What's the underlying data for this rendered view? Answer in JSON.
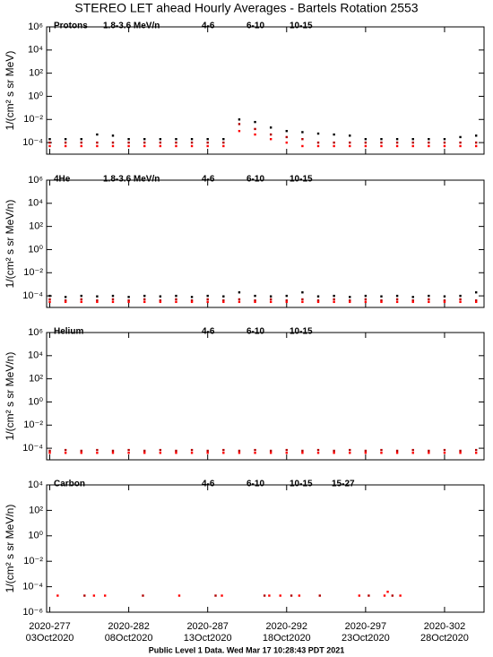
{
  "page": {
    "title": "STEREO LET ahead Hourly Averages - Bartels Rotation 2553",
    "footer": "Public Level 1 Data. Wed Mar 17 10:28:43 PDT 2021"
  },
  "chart_data": [
    {
      "type": "scatter",
      "label": "Protons",
      "y_label": "1/(cm² s sr MeV)",
      "log_y": true,
      "xlim": [
        276.8,
        304.5
      ],
      "ylim": [
        1e-05,
        1000000
      ],
      "yticks": [
        {
          "value": 0.0001,
          "label": "10⁻⁴"
        },
        {
          "value": 0.01,
          "label": "10⁻²"
        },
        {
          "value": 1,
          "label": "10⁰"
        },
        {
          "value": 100,
          "label": "10²"
        },
        {
          "value": 10000,
          "label": "10⁴"
        },
        {
          "value": 1000000,
          "label": "10⁶"
        }
      ],
      "x": [
        277,
        278,
        279,
        280,
        281,
        282,
        283,
        284,
        285,
        286,
        287,
        288,
        289,
        290,
        291,
        292,
        293,
        294,
        295,
        296,
        297,
        298,
        299,
        300,
        301,
        302,
        303,
        304
      ],
      "series": [
        {
          "name": "1.8-3.6 MeV/n",
          "color": "#000000",
          "values": [
            0.0002,
            0.0002,
            0.0002,
            0.0005,
            0.0004,
            0.0002,
            0.0002,
            0.0002,
            0.0002,
            0.0002,
            0.0002,
            0.0002,
            0.01,
            0.006,
            0.002,
            0.001,
            0.0008,
            0.0006,
            0.0005,
            0.0004,
            0.0002,
            0.0002,
            0.0002,
            0.0002,
            0.0002,
            0.0002,
            0.0003,
            0.0004
          ]
        },
        {
          "name": "4-6",
          "color": "#b00000",
          "values": [
            0.0001,
            0.0001,
            0.0001,
            0.0001,
            0.0001,
            0.0001,
            0.0001,
            0.0001,
            0.0001,
            0.0001,
            0.0001,
            0.0001,
            0.004,
            0.0015,
            0.0005,
            0.0003,
            0.0002,
            0.0001,
            0.0001,
            0.0001,
            0.0001,
            0.0001,
            0.0001,
            0.0001,
            0.0001,
            0.0001,
            0.0001,
            0.0001
          ]
        },
        {
          "name": "6-10",
          "color": "#ff0000",
          "values": [
            5e-05,
            5e-05,
            5e-05,
            5e-05,
            5e-05,
            5e-05,
            5e-05,
            5e-05,
            5e-05,
            5e-05,
            5e-05,
            5e-05,
            0.001,
            0.0005,
            0.0002,
            0.0001,
            5e-05,
            5e-05,
            5e-05,
            5e-05,
            5e-05,
            5e-05,
            5e-05,
            5e-05,
            5e-05,
            5e-05,
            5e-05,
            5e-05
          ]
        },
        {
          "name": "10-15",
          "color": "#888888",
          "values": [
            null,
            null,
            null,
            null,
            null,
            null,
            null,
            null,
            null,
            null,
            null,
            null,
            null,
            null,
            null,
            null,
            null,
            null,
            null,
            null,
            null,
            null,
            null,
            null,
            null,
            null,
            null,
            null
          ]
        }
      ]
    },
    {
      "type": "scatter",
      "label": "4He",
      "y_label": "1/(cm² s sr MeV/n)",
      "log_y": true,
      "xlim": [
        276.8,
        304.5
      ],
      "ylim": [
        1e-05,
        1000000
      ],
      "yticks": [
        {
          "value": 0.0001,
          "label": "10⁻⁴"
        },
        {
          "value": 0.01,
          "label": "10⁻²"
        },
        {
          "value": 1,
          "label": "10⁰"
        },
        {
          "value": 100,
          "label": "10²"
        },
        {
          "value": 10000,
          "label": "10⁴"
        },
        {
          "value": 1000000,
          "label": "10⁶"
        }
      ],
      "x": [
        277,
        278,
        279,
        280,
        281,
        282,
        283,
        284,
        285,
        286,
        287,
        288,
        289,
        290,
        291,
        292,
        293,
        294,
        295,
        296,
        297,
        298,
        299,
        300,
        301,
        302,
        303,
        304
      ],
      "series": [
        {
          "name": "1.8-3.6 MeV/n",
          "color": "#000000",
          "values": [
            0.0001,
            8e-05,
            0.0001,
            9e-05,
            0.0001,
            8e-05,
            0.0001,
            9e-05,
            0.0001,
            8e-05,
            0.0001,
            9e-05,
            0.0002,
            0.0001,
            9e-05,
            0.0001,
            0.0002,
            9e-05,
            0.0001,
            8e-05,
            0.0001,
            9e-05,
            0.0001,
            8e-05,
            0.0001,
            9e-05,
            0.0001,
            0.0002
          ]
        },
        {
          "name": "4-6",
          "color": "#b00000",
          "values": [
            5e-05,
            4e-05,
            5e-05,
            4e-05,
            5e-05,
            4e-05,
            5e-05,
            4e-05,
            5e-05,
            4e-05,
            5e-05,
            4e-05,
            5e-05,
            4e-05,
            5e-05,
            4e-05,
            5e-05,
            4e-05,
            5e-05,
            4e-05,
            5e-05,
            4e-05,
            5e-05,
            4e-05,
            5e-05,
            4e-05,
            5e-05,
            4e-05
          ]
        },
        {
          "name": "6-10",
          "color": "#ff0000",
          "values": [
            3e-05,
            3e-05,
            3e-05,
            3e-05,
            3e-05,
            3e-05,
            3e-05,
            3e-05,
            3e-05,
            3e-05,
            3e-05,
            3e-05,
            3e-05,
            3e-05,
            3e-05,
            3e-05,
            3e-05,
            3e-05,
            3e-05,
            3e-05,
            3e-05,
            3e-05,
            3e-05,
            3e-05,
            3e-05,
            3e-05,
            3e-05,
            3e-05
          ]
        },
        {
          "name": "10-15",
          "color": "#888888",
          "values": [
            null,
            null,
            null,
            null,
            null,
            null,
            null,
            null,
            null,
            null,
            null,
            null,
            null,
            null,
            null,
            null,
            null,
            null,
            null,
            null,
            null,
            null,
            null,
            null,
            null,
            null,
            null,
            null
          ]
        }
      ]
    },
    {
      "type": "scatter",
      "label": "Helium",
      "y_label": "1/(cm² s sr MeV/n)",
      "log_y": true,
      "xlim": [
        276.8,
        304.5
      ],
      "ylim": [
        1e-05,
        1000000
      ],
      "yticks": [
        {
          "value": 0.0001,
          "label": "10⁻⁴"
        },
        {
          "value": 0.01,
          "label": "10⁻²"
        },
        {
          "value": 1,
          "label": "10⁰"
        },
        {
          "value": 100,
          "label": "10²"
        },
        {
          "value": 10000,
          "label": "10⁴"
        },
        {
          "value": 1000000,
          "label": "10⁶"
        }
      ],
      "x": [
        277,
        278,
        279,
        280,
        281,
        282,
        283,
        284,
        285,
        286,
        287,
        288,
        289,
        290,
        291,
        292,
        293,
        294,
        295,
        296,
        297,
        298,
        299,
        300,
        301,
        302,
        303,
        304
      ],
      "series": [
        {
          "name": "4-6",
          "color": "#b00000",
          "values": [
            6e-05,
            7e-05,
            6e-05,
            7e-05,
            6e-05,
            7e-05,
            6e-05,
            7e-05,
            6e-05,
            7e-05,
            6e-05,
            7e-05,
            6e-05,
            7e-05,
            6e-05,
            7e-05,
            6e-05,
            7e-05,
            6e-05,
            7e-05,
            6e-05,
            7e-05,
            6e-05,
            7e-05,
            6e-05,
            7e-05,
            6e-05,
            7e-05
          ]
        },
        {
          "name": "6-10",
          "color": "#ff0000",
          "values": [
            4e-05,
            4e-05,
            4e-05,
            4e-05,
            4e-05,
            4e-05,
            4e-05,
            4e-05,
            4e-05,
            4e-05,
            4e-05,
            4e-05,
            4e-05,
            4e-05,
            4e-05,
            4e-05,
            4e-05,
            4e-05,
            4e-05,
            4e-05,
            4e-05,
            4e-05,
            4e-05,
            4e-05,
            4e-05,
            4e-05,
            4e-05,
            4e-05
          ]
        },
        {
          "name": "10-15",
          "color": "#888888",
          "values": [
            null,
            null,
            null,
            null,
            null,
            null,
            null,
            null,
            null,
            null,
            null,
            null,
            null,
            null,
            null,
            null,
            null,
            null,
            null,
            null,
            null,
            null,
            null,
            null,
            null,
            null,
            null,
            null
          ]
        }
      ]
    },
    {
      "type": "scatter",
      "label": "Carbon",
      "y_label": "1/(cm² s sr MeV/n)",
      "log_y": true,
      "xlim": [
        276.8,
        304.5
      ],
      "ylim": [
        1e-06,
        10000
      ],
      "yticks": [
        {
          "value": 1e-06,
          "label": "10⁻⁶"
        },
        {
          "value": 0.0001,
          "label": "10⁻⁴"
        },
        {
          "value": 0.01,
          "label": "10⁻²"
        },
        {
          "value": 1,
          "label": "10⁰"
        },
        {
          "value": 100,
          "label": "10²"
        },
        {
          "value": 10000,
          "label": "10⁴"
        }
      ],
      "xticks": [
        {
          "value": 277,
          "label": "2020-277"
        },
        {
          "value": 282,
          "label": "2020-282"
        },
        {
          "value": 287,
          "label": "2020-287"
        },
        {
          "value": 292,
          "label": "2020-292"
        },
        {
          "value": 297,
          "label": "2020-297"
        },
        {
          "value": 302,
          "label": "2020-302"
        }
      ],
      "xtick_dates": [
        "03Oct2020",
        "08Oct2020",
        "13Oct2020",
        "18Oct2020",
        "23Oct2020",
        "28Oct2020"
      ],
      "series": [
        {
          "name": "4-6",
          "color": "#b00000",
          "x": [
            279.2,
            282.9,
            287.5,
            290.6,
            292.3,
            294.1,
            297.2,
            298.7
          ],
          "values": [
            2e-05,
            2e-05,
            2e-05,
            2e-05,
            2e-05,
            2e-05,
            2e-05,
            2e-05
          ]
        },
        {
          "name": "6-10",
          "color": "#ff0000",
          "x": [
            277.5,
            279.8,
            280.5,
            285.2,
            287.9,
            290.9,
            291.6,
            292.8,
            296.6,
            298.2,
            298.4,
            299.2
          ],
          "values": [
            2e-05,
            2e-05,
            2e-05,
            2e-05,
            2e-05,
            2e-05,
            2e-05,
            2e-05,
            2e-05,
            2e-05,
            4e-05,
            2e-05
          ]
        },
        {
          "name": "10-15",
          "color": "#888888",
          "x": [],
          "values": []
        },
        {
          "name": "15-27",
          "color": "#0000dd",
          "x": [],
          "values": []
        }
      ]
    }
  ]
}
